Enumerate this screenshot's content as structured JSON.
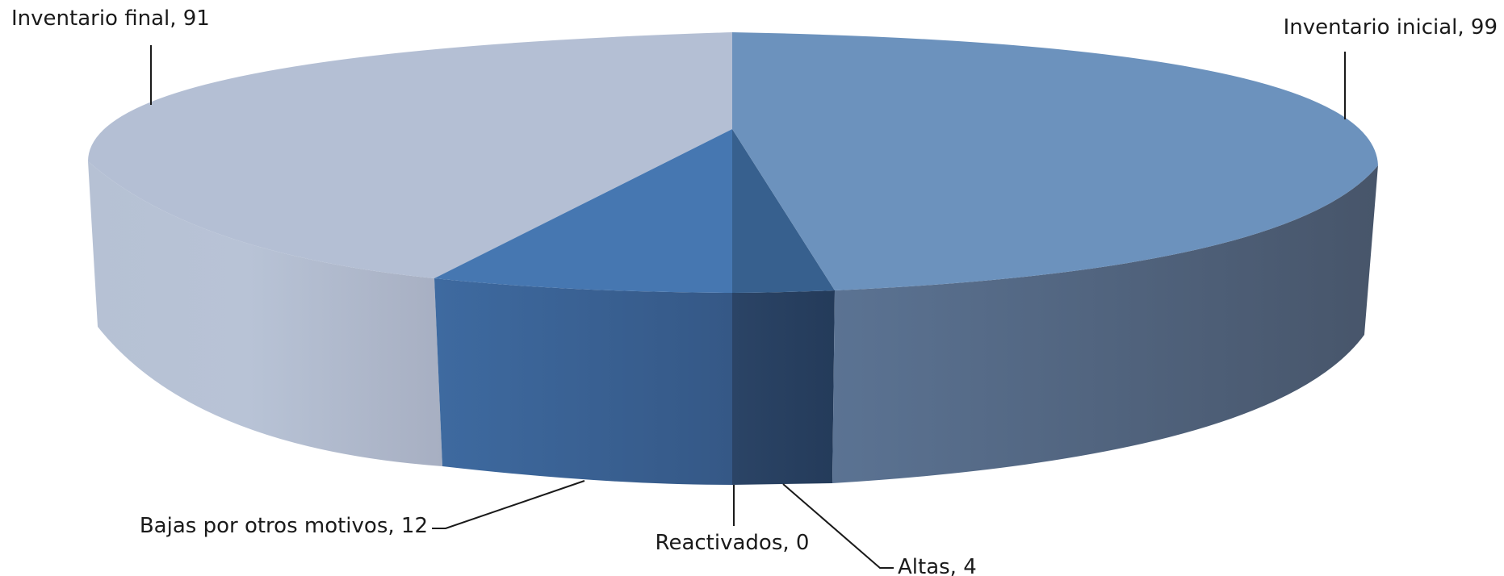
{
  "chart_data": {
    "type": "pie",
    "style": "3d",
    "slices": [
      {
        "label": "Inventario inicial",
        "value": 99,
        "color": "#6c92bd",
        "text": "Inventario inicial, 99"
      },
      {
        "label": "Altas",
        "value": 4,
        "color": "#37608e",
        "text": "Altas, 4"
      },
      {
        "label": "Reactivados",
        "value": 0,
        "color": "#3e6aa3",
        "text": "Reactivados, 0"
      },
      {
        "label": "Bajas por otros motivos",
        "value": 12,
        "color": "#4677b1",
        "text": "Bajas por otros motivos, 12"
      },
      {
        "label": "Inventario final",
        "value": 91,
        "color": "#b4bfd4",
        "text": "Inventario final, 91"
      }
    ]
  }
}
